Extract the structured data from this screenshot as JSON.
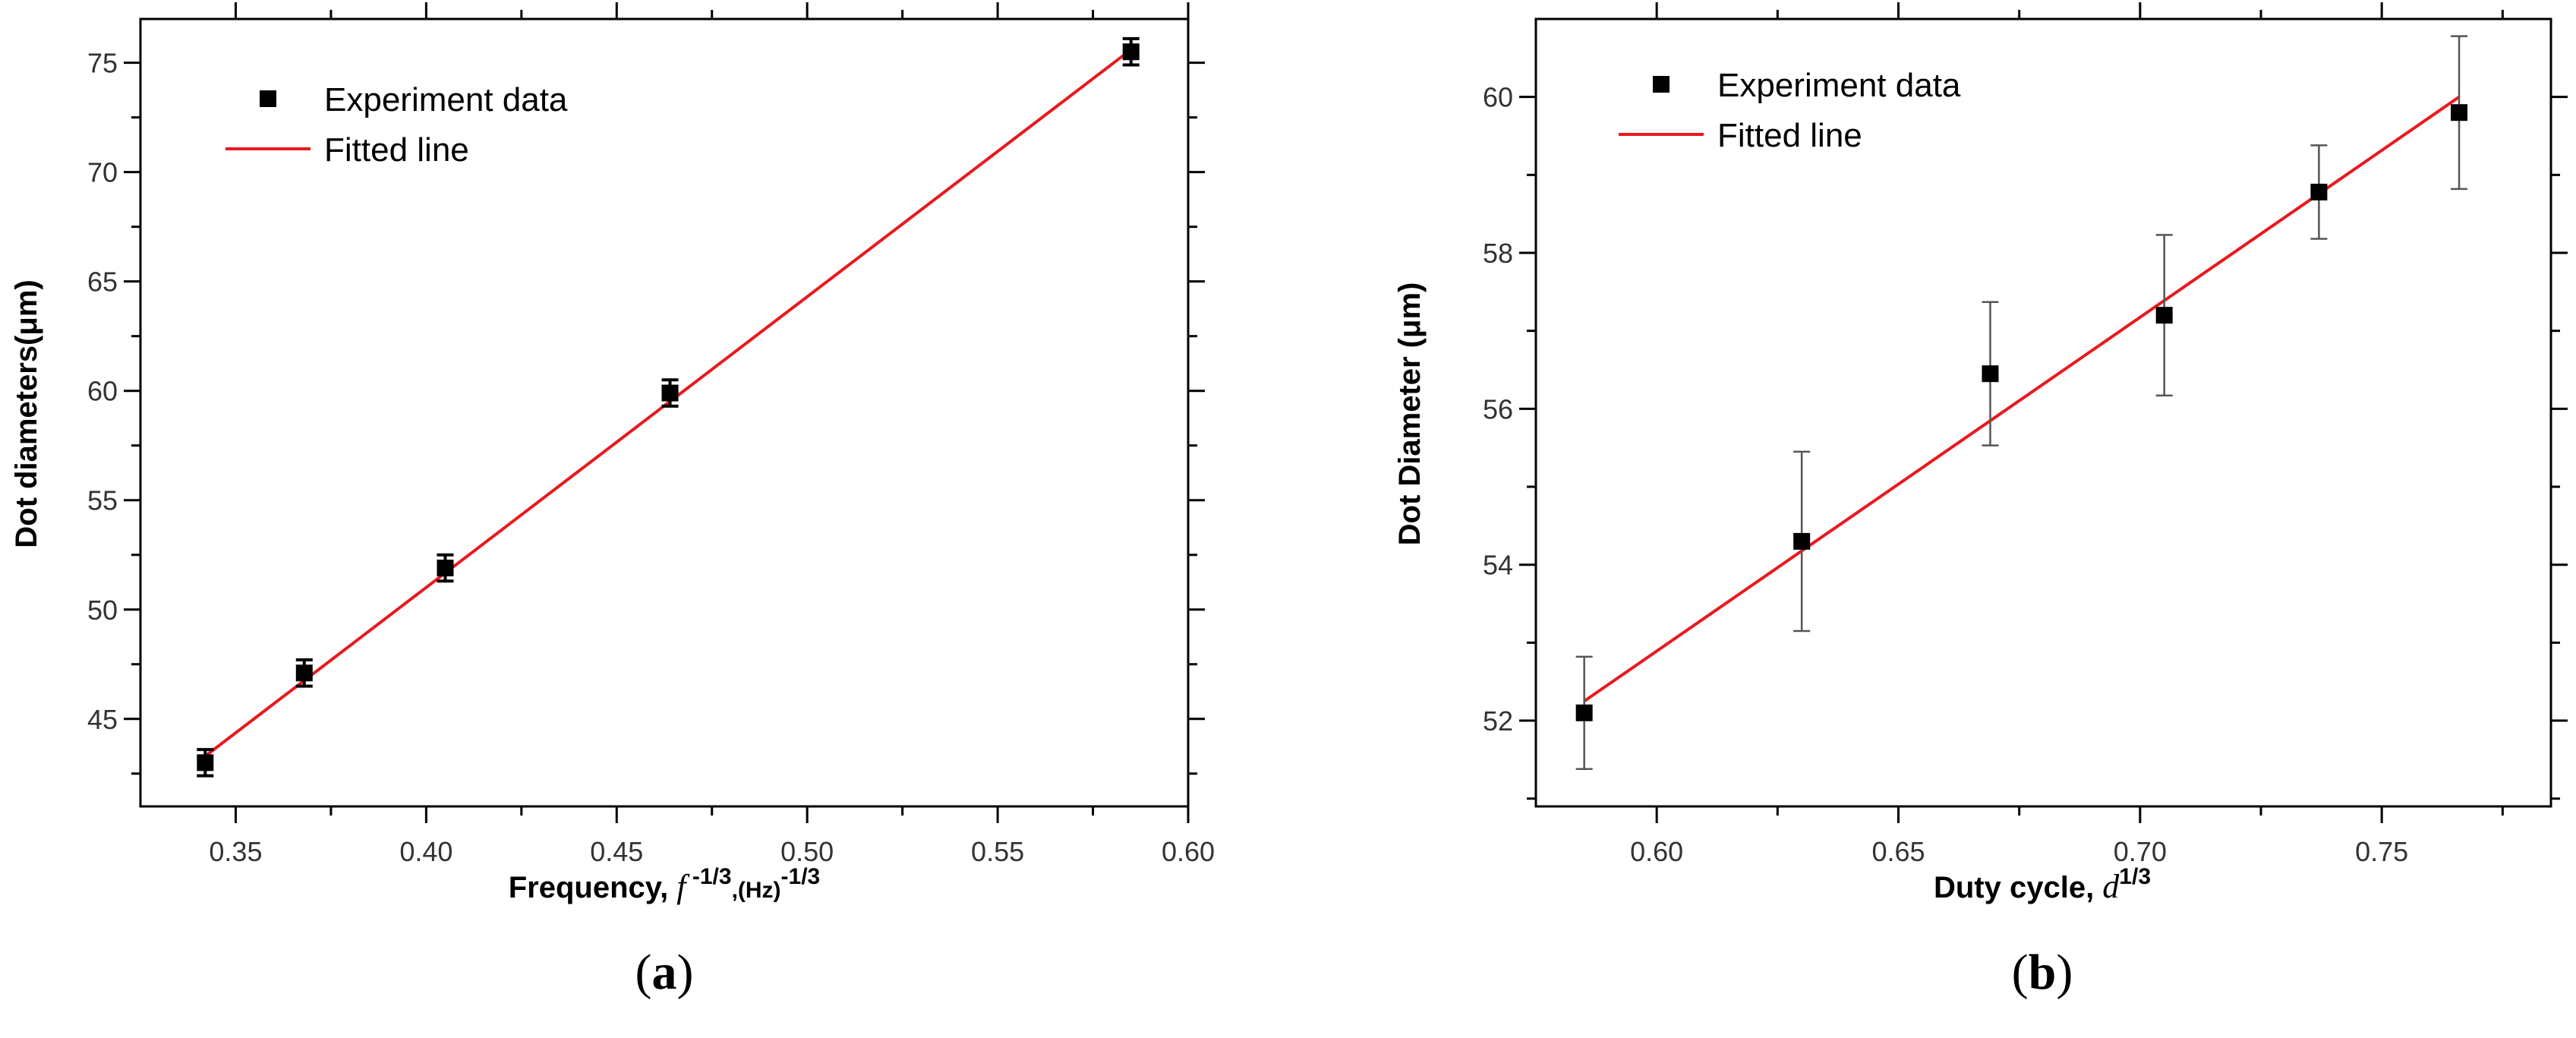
{
  "colors": {
    "points": "#000000",
    "fit_line": "#e8191f",
    "error_bars_a": "#000000",
    "error_bars_b": "#555555"
  },
  "chart_data": [
    {
      "type": "scatter",
      "panel_label": "a",
      "xlabel": {
        "prefix": "Frequency, ",
        "symbol": "f",
        "exp1": " -1/3",
        "mid": ",(Hz)",
        "exp2": "-1/3"
      },
      "ylabel": "Dot diameters(μm)",
      "xlim": [
        0.325,
        0.6
      ],
      "ylim": [
        41.0,
        77.0
      ],
      "xticks": [
        0.35,
        0.4,
        0.45,
        0.5,
        0.55,
        0.6
      ],
      "xtick_labels": [
        "0.35",
        "0.40",
        "0.45",
        "0.50",
        "0.55",
        "0.60"
      ],
      "yticks": [
        45,
        50,
        55,
        60,
        65,
        70,
        75
      ],
      "ytick_labels": [
        "45",
        "50",
        "55",
        "60",
        "65",
        "70",
        "75"
      ],
      "legend": {
        "position": "top-left",
        "entries": [
          "Experiment data",
          "Fitted line"
        ]
      },
      "series": [
        {
          "kind": "points",
          "x": [
            0.342,
            0.368,
            0.405,
            0.464,
            0.585
          ],
          "y": [
            43.0,
            47.1,
            51.9,
            59.9,
            75.5
          ],
          "yerr": [
            0.6,
            0.6,
            0.6,
            0.6,
            0.6
          ]
        },
        {
          "kind": "line",
          "x": [
            0.342,
            0.585
          ],
          "y": [
            43.3,
            75.6
          ]
        }
      ]
    },
    {
      "type": "scatter",
      "panel_label": "b",
      "xlabel": {
        "prefix": "Duty cycle, ",
        "symbol": "d",
        "exp1": "1/3",
        "mid": "",
        "exp2": ""
      },
      "ylabel": "Dot Diameter (μm)",
      "xlim": [
        0.575,
        0.785
      ],
      "ylim": [
        50.9,
        61.0
      ],
      "xticks": [
        0.6,
        0.65,
        0.7,
        0.75
      ],
      "xtick_labels": [
        "0.60",
        "0.65",
        "0.70",
        "0.75"
      ],
      "yticks": [
        52,
        54,
        56,
        58,
        60
      ],
      "ytick_labels": [
        "52",
        "54",
        "56",
        "58",
        "60"
      ],
      "legend": {
        "position": "top-left",
        "entries": [
          "Experiment data",
          "Fitted line"
        ]
      },
      "series": [
        {
          "kind": "points",
          "x": [
            0.585,
            0.63,
            0.669,
            0.705,
            0.737,
            0.766
          ],
          "y": [
            52.1,
            54.3,
            56.45,
            57.2,
            58.78,
            59.8
          ],
          "yerr": [
            0.72,
            1.15,
            0.92,
            1.03,
            0.6,
            0.98
          ]
        },
        {
          "kind": "line",
          "x": [
            0.585,
            0.766
          ],
          "y": [
            52.25,
            60.0
          ]
        }
      ]
    }
  ]
}
